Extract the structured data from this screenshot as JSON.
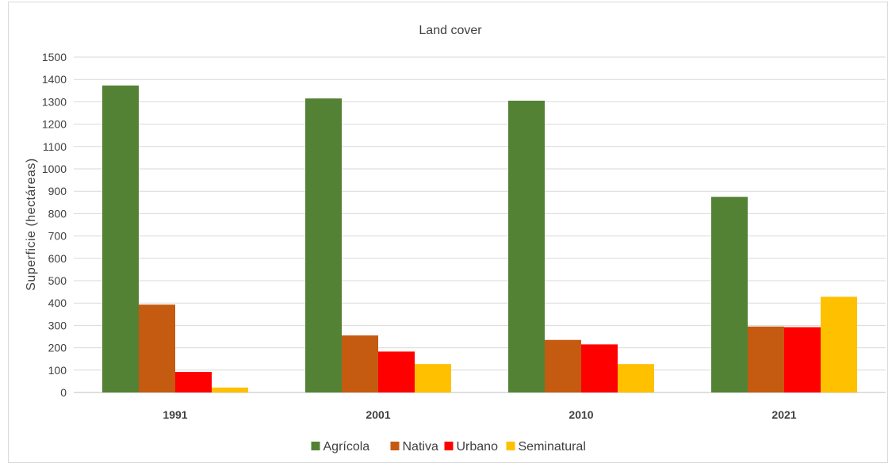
{
  "chart_data": {
    "type": "bar",
    "title": "Land cover",
    "xlabel": "",
    "ylabel": "Superficie (hectáreas)",
    "categories": [
      "1991",
      "2001",
      "2010",
      "2021"
    ],
    "ylim": [
      0,
      1500
    ],
    "yticks": [
      0,
      100,
      200,
      300,
      400,
      500,
      600,
      700,
      800,
      900,
      1000,
      1100,
      1200,
      1300,
      1400,
      1500
    ],
    "grid": true,
    "legend_position": "bottom",
    "series": [
      {
        "name": "Agrícola",
        "color": "#548235",
        "values": [
          1373,
          1315,
          1305,
          875
        ]
      },
      {
        "name": "Nativa",
        "color": "#c55a11",
        "values": [
          393,
          255,
          235,
          295
        ]
      },
      {
        "name": "Urbano",
        "color": "#ff0000",
        "values": [
          92,
          183,
          215,
          292
        ]
      },
      {
        "name": "Seminatural",
        "color": "#ffc000",
        "values": [
          22,
          127,
          127,
          428
        ]
      }
    ]
  }
}
